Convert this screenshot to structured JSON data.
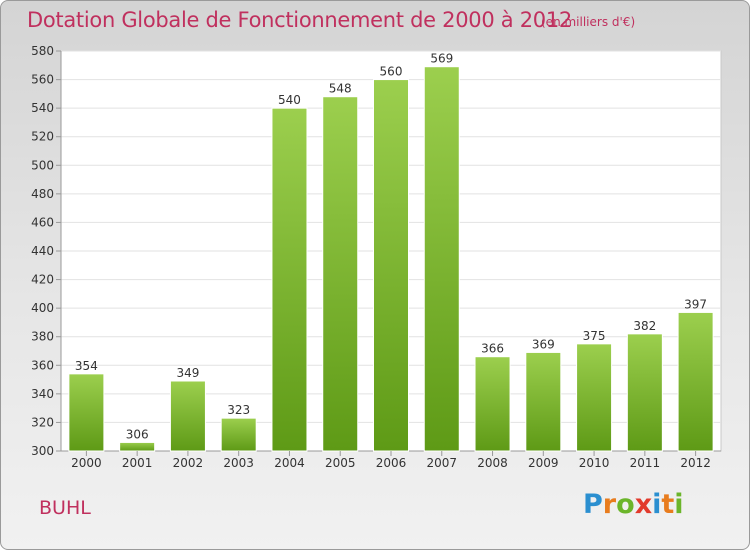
{
  "chart_data": {
    "type": "bar",
    "title": "Dotation Globale de Fonctionnement de 2000 à 2012",
    "subtitle": "(en milliers d'€)",
    "categories": [
      "2000",
      "2001",
      "2002",
      "2003",
      "2004",
      "2005",
      "2006",
      "2007",
      "2008",
      "2009",
      "2010",
      "2011",
      "2012"
    ],
    "values": [
      354,
      306,
      349,
      323,
      540,
      548,
      560,
      569,
      366,
      369,
      375,
      382,
      397
    ],
    "ylim": [
      300,
      580
    ],
    "yticks": [
      300,
      320,
      340,
      360,
      380,
      400,
      420,
      440,
      460,
      480,
      500,
      520,
      540,
      560,
      580
    ],
    "grid": true,
    "bar_color": "#7cbc2c"
  },
  "commune": "BUHL",
  "logo": {
    "letters": [
      {
        "char": "P",
        "color": "#2b8fd0"
      },
      {
        "char": "r",
        "color": "#e87c1e"
      },
      {
        "char": "o",
        "color": "#6bb52a"
      },
      {
        "char": "x",
        "color": "#e23a2c"
      },
      {
        "char": "i",
        "color": "#2b8fd0"
      },
      {
        "char": "t",
        "color": "#e87c1e"
      },
      {
        "char": "i",
        "color": "#6bb52a"
      }
    ]
  }
}
